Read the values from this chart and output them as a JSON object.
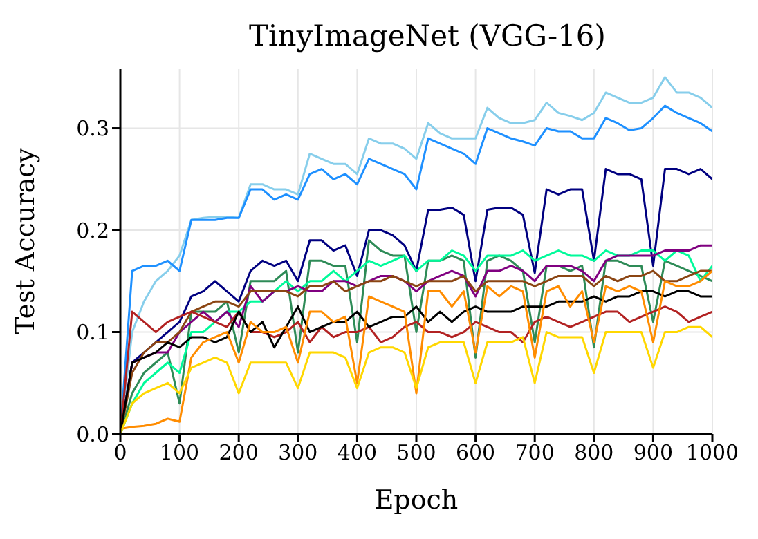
{
  "chart_data": {
    "type": "line",
    "title": "TinyImageNet (VGG-16)",
    "xlabel": "Epoch",
    "ylabel": "Test Accuracy",
    "x": [
      0,
      20,
      40,
      60,
      80,
      100,
      120,
      140,
      160,
      180,
      200,
      220,
      240,
      260,
      280,
      300,
      320,
      340,
      360,
      380,
      400,
      420,
      440,
      460,
      480,
      500,
      520,
      540,
      560,
      580,
      600,
      620,
      640,
      660,
      680,
      700,
      720,
      740,
      760,
      780,
      800,
      820,
      840,
      860,
      880,
      900,
      920,
      940,
      960,
      980,
      1000
    ],
    "series": [
      {
        "color": "#87ceeb",
        "values": [
          0,
          0.1,
          0.13,
          0.15,
          0.16,
          0.175,
          0.21,
          0.212,
          0.213,
          0.213,
          0.212,
          0.245,
          0.245,
          0.24,
          0.24,
          0.235,
          0.275,
          0.27,
          0.265,
          0.265,
          0.255,
          0.29,
          0.285,
          0.285,
          0.28,
          0.27,
          0.305,
          0.295,
          0.29,
          0.29,
          0.29,
          0.32,
          0.31,
          0.305,
          0.305,
          0.308,
          0.325,
          0.315,
          0.312,
          0.308,
          0.315,
          0.335,
          0.33,
          0.325,
          0.325,
          0.33,
          0.35,
          0.335,
          0.335,
          0.33,
          0.32
        ]
      },
      {
        "color": "#1e90ff",
        "values": [
          0,
          0.16,
          0.165,
          0.165,
          0.17,
          0.16,
          0.21,
          0.21,
          0.21,
          0.212,
          0.212,
          0.24,
          0.24,
          0.23,
          0.235,
          0.23,
          0.255,
          0.26,
          0.25,
          0.255,
          0.245,
          0.27,
          0.265,
          0.26,
          0.255,
          0.24,
          0.29,
          0.285,
          0.28,
          0.275,
          0.265,
          0.3,
          0.295,
          0.29,
          0.287,
          0.283,
          0.3,
          0.297,
          0.297,
          0.29,
          0.29,
          0.31,
          0.305,
          0.298,
          0.3,
          0.31,
          0.322,
          0.315,
          0.31,
          0.305,
          0.297
        ]
      },
      {
        "color": "#000080",
        "values": [
          0,
          0.07,
          0.08,
          0.09,
          0.1,
          0.11,
          0.135,
          0.14,
          0.15,
          0.14,
          0.13,
          0.16,
          0.17,
          0.165,
          0.17,
          0.15,
          0.19,
          0.19,
          0.18,
          0.185,
          0.155,
          0.2,
          0.2,
          0.195,
          0.185,
          0.16,
          0.22,
          0.22,
          0.222,
          0.215,
          0.15,
          0.22,
          0.222,
          0.222,
          0.215,
          0.158,
          0.24,
          0.235,
          0.24,
          0.24,
          0.17,
          0.26,
          0.255,
          0.255,
          0.25,
          0.165,
          0.26,
          0.26,
          0.255,
          0.26,
          0.25
        ]
      },
      {
        "color": "#2e8b57",
        "values": [
          0,
          0.04,
          0.06,
          0.07,
          0.08,
          0.03,
          0.12,
          0.12,
          0.12,
          0.13,
          0.08,
          0.15,
          0.15,
          0.15,
          0.16,
          0.08,
          0.17,
          0.17,
          0.165,
          0.165,
          0.09,
          0.19,
          0.18,
          0.175,
          0.175,
          0.1,
          0.17,
          0.17,
          0.175,
          0.17,
          0.075,
          0.17,
          0.175,
          0.17,
          0.16,
          0.09,
          0.165,
          0.165,
          0.16,
          0.165,
          0.085,
          0.17,
          0.17,
          0.165,
          0.165,
          0.11,
          0.17,
          0.165,
          0.16,
          0.155,
          0.15
        ]
      },
      {
        "color": "#00fa9a",
        "values": [
          0,
          0.03,
          0.05,
          0.06,
          0.07,
          0.06,
          0.1,
          0.1,
          0.11,
          0.12,
          0.12,
          0.13,
          0.13,
          0.14,
          0.15,
          0.14,
          0.15,
          0.15,
          0.16,
          0.15,
          0.16,
          0.17,
          0.165,
          0.17,
          0.175,
          0.16,
          0.17,
          0.17,
          0.18,
          0.175,
          0.16,
          0.175,
          0.175,
          0.175,
          0.18,
          0.17,
          0.175,
          0.18,
          0.175,
          0.175,
          0.17,
          0.18,
          0.175,
          0.175,
          0.18,
          0.18,
          0.17,
          0.18,
          0.175,
          0.15,
          0.165
        ]
      },
      {
        "color": "#800080",
        "values": [
          0,
          0.07,
          0.075,
          0.08,
          0.08,
          0.1,
          0.11,
          0.12,
          0.11,
          0.12,
          0.105,
          0.145,
          0.13,
          0.14,
          0.14,
          0.145,
          0.14,
          0.14,
          0.15,
          0.15,
          0.145,
          0.15,
          0.155,
          0.155,
          0.15,
          0.14,
          0.15,
          0.155,
          0.16,
          0.155,
          0.135,
          0.16,
          0.16,
          0.165,
          0.16,
          0.15,
          0.165,
          0.165,
          0.165,
          0.16,
          0.15,
          0.17,
          0.175,
          0.175,
          0.175,
          0.175,
          0.18,
          0.18,
          0.18,
          0.185,
          0.185
        ]
      },
      {
        "color": "#8b4513",
        "values": [
          0,
          0.06,
          0.08,
          0.09,
          0.09,
          0.1,
          0.12,
          0.125,
          0.13,
          0.13,
          0.125,
          0.14,
          0.14,
          0.14,
          0.14,
          0.135,
          0.145,
          0.145,
          0.15,
          0.14,
          0.145,
          0.15,
          0.15,
          0.155,
          0.15,
          0.145,
          0.15,
          0.15,
          0.15,
          0.155,
          0.14,
          0.15,
          0.15,
          0.15,
          0.15,
          0.145,
          0.15,
          0.155,
          0.155,
          0.155,
          0.145,
          0.155,
          0.15,
          0.155,
          0.155,
          0.16,
          0.15,
          0.15,
          0.155,
          0.16,
          0.16
        ]
      },
      {
        "color": "#b22222",
        "values": [
          0,
          0.12,
          0.11,
          0.1,
          0.11,
          0.115,
          0.12,
          0.115,
          0.11,
          0.105,
          0.12,
          0.1,
          0.1,
          0.095,
          0.1,
          0.11,
          0.09,
          0.105,
          0.095,
          0.1,
          0.1,
          0.105,
          0.09,
          0.095,
          0.105,
          0.11,
          0.1,
          0.1,
          0.095,
          0.1,
          0.11,
          0.105,
          0.1,
          0.1,
          0.09,
          0.11,
          0.115,
          0.11,
          0.105,
          0.11,
          0.115,
          0.12,
          0.12,
          0.11,
          0.115,
          0.12,
          0.125,
          0.12,
          0.11,
          0.115,
          0.12
        ]
      },
      {
        "color": "#000000",
        "values": [
          0,
          0.07,
          0.075,
          0.08,
          0.09,
          0.085,
          0.095,
          0.095,
          0.09,
          0.095,
          0.12,
          0.1,
          0.11,
          0.085,
          0.105,
          0.125,
          0.1,
          0.105,
          0.11,
          0.11,
          0.12,
          0.105,
          0.11,
          0.115,
          0.115,
          0.125,
          0.11,
          0.12,
          0.11,
          0.12,
          0.125,
          0.12,
          0.12,
          0.12,
          0.125,
          0.125,
          0.125,
          0.13,
          0.13,
          0.13,
          0.135,
          0.13,
          0.135,
          0.135,
          0.14,
          0.14,
          0.135,
          0.14,
          0.14,
          0.135,
          0.135
        ]
      },
      {
        "color": "#ff8c00",
        "values": [
          0.005,
          0.007,
          0.008,
          0.01,
          0.015,
          0.012,
          0.075,
          0.09,
          0.095,
          0.1,
          0.07,
          0.11,
          0.1,
          0.1,
          0.105,
          0.07,
          0.12,
          0.12,
          0.11,
          0.115,
          0.05,
          0.135,
          0.13,
          0.125,
          0.12,
          0.04,
          0.14,
          0.14,
          0.125,
          0.14,
          0.08,
          0.145,
          0.135,
          0.145,
          0.14,
          0.075,
          0.14,
          0.145,
          0.125,
          0.14,
          0.09,
          0.145,
          0.14,
          0.145,
          0.14,
          0.09,
          0.15,
          0.145,
          0.145,
          0.15,
          0.16
        ]
      },
      {
        "color": "#ffd700",
        "values": [
          0,
          0.03,
          0.04,
          0.045,
          0.05,
          0.04,
          0.065,
          0.07,
          0.075,
          0.07,
          0.04,
          0.07,
          0.07,
          0.07,
          0.07,
          0.045,
          0.08,
          0.08,
          0.08,
          0.075,
          0.045,
          0.08,
          0.085,
          0.085,
          0.08,
          0.045,
          0.085,
          0.09,
          0.09,
          0.09,
          0.05,
          0.09,
          0.09,
          0.09,
          0.095,
          0.05,
          0.1,
          0.095,
          0.095,
          0.095,
          0.06,
          0.1,
          0.1,
          0.1,
          0.1,
          0.065,
          0.1,
          0.1,
          0.105,
          0.105,
          0.095
        ]
      }
    ],
    "xlim": [
      0,
      1000
    ],
    "xticks": [
      0,
      100,
      200,
      300,
      400,
      500,
      600,
      700,
      800,
      900,
      1000
    ],
    "ylim": [
      0,
      0.358
    ],
    "yticks": [
      {
        "value": 0,
        "label": "0.0"
      },
      0.1,
      0.2,
      0.3
    ],
    "grid": true,
    "legend": false,
    "marker": "none",
    "line_style": "solid"
  }
}
